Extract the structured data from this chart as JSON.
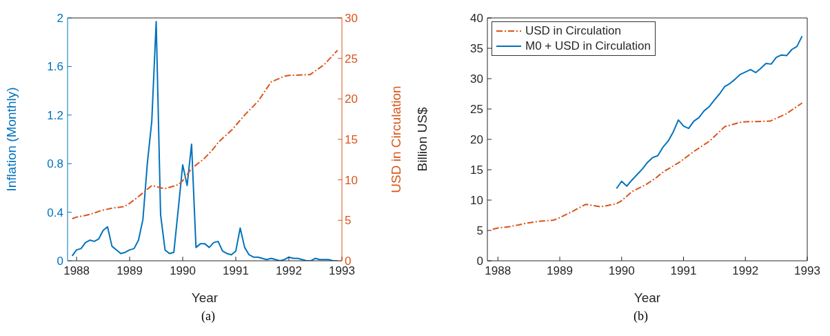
{
  "chart_data": [
    {
      "type": "line",
      "xlabel": "Year",
      "ylabel": "Inflation (Monthly)",
      "y2label": "USD in Circulation",
      "annotations": [
        "(a)"
      ],
      "xlim": [
        1987.83,
        1993
      ],
      "xticks": [
        1988,
        1989,
        1990,
        1991,
        1992,
        1993
      ],
      "ylim": [
        0,
        2
      ],
      "yticks": [
        0,
        0.4,
        0.8,
        1.2,
        1.6,
        2
      ],
      "y2lim": [
        0,
        30
      ],
      "y2ticks": [
        0,
        5,
        10,
        15,
        20,
        25,
        30
      ],
      "legend": false,
      "series": [
        {
          "color": "#0072bd",
          "line_style": "solid",
          "x": [
            1987.917,
            1988.0,
            1988.083,
            1988.167,
            1988.25,
            1988.333,
            1988.417,
            1988.5,
            1988.583,
            1988.667,
            1988.75,
            1988.833,
            1988.917,
            1989.0,
            1989.083,
            1989.167,
            1989.25,
            1989.333,
            1989.417,
            1989.5,
            1989.583,
            1989.667,
            1989.75,
            1989.833,
            1989.917,
            1990.0,
            1990.083,
            1990.167,
            1990.25,
            1990.333,
            1990.417,
            1990.5,
            1990.583,
            1990.667,
            1990.75,
            1990.833,
            1990.917,
            1991.0,
            1991.083,
            1991.167,
            1991.25,
            1991.333,
            1991.417,
            1991.5,
            1991.583,
            1991.667,
            1991.75,
            1991.833,
            1991.917,
            1992.0,
            1992.083,
            1992.167,
            1992.25,
            1992.333,
            1992.417,
            1992.5,
            1992.583,
            1992.667,
            1992.75,
            1992.833,
            1992.917
          ],
          "values": [
            0.04,
            0.09,
            0.1,
            0.15,
            0.17,
            0.16,
            0.18,
            0.25,
            0.28,
            0.12,
            0.09,
            0.06,
            0.07,
            0.09,
            0.1,
            0.17,
            0.34,
            0.8,
            1.15,
            1.97,
            0.38,
            0.09,
            0.06,
            0.07,
            0.43,
            0.79,
            0.62,
            0.96,
            0.11,
            0.14,
            0.14,
            0.11,
            0.15,
            0.16,
            0.08,
            0.06,
            0.05,
            0.08,
            0.27,
            0.11,
            0.05,
            0.03,
            0.03,
            0.02,
            0.01,
            0.02,
            0.01,
            0,
            0.01,
            0.03,
            0.02,
            0.02,
            0.01,
            0,
            0,
            0.02,
            0.01,
            0.01,
            0.01,
            0,
            0
          ]
        },
        {
          "color": "#d95319",
          "axis": "y2",
          "line_style": "dashdot",
          "x": [
            1987.917,
            1988.0,
            1988.167,
            1988.333,
            1988.46,
            1988.667,
            1988.9,
            1989.0,
            1989.16,
            1989.42,
            1989.66,
            1989.917,
            1990.0,
            1990.167,
            1990.4,
            1990.56,
            1990.68,
            1990.93,
            1991.18,
            1991.42,
            1991.667,
            1991.917,
            1992.0,
            1992.4,
            1992.66,
            1992.917
          ],
          "values": [
            5.2,
            5.4,
            5.6,
            5.9,
            6.2,
            6.5,
            6.7,
            7.1,
            7.9,
            9.3,
            8.9,
            9.4,
            9.9,
            11.4,
            12.6,
            13.7,
            14.7,
            16.2,
            18.1,
            19.7,
            22.1,
            22.8,
            22.9,
            23.0,
            24.2,
            26.0
          ]
        }
      ]
    },
    {
      "type": "line",
      "xlabel": "Year",
      "ylabel": "Billion US$",
      "annotations": [
        "(b)"
      ],
      "xlim": [
        1987.83,
        1993
      ],
      "xticks": [
        1988,
        1989,
        1990,
        1991,
        1992,
        1993
      ],
      "ylim": [
        0,
        40
      ],
      "yticks": [
        0,
        5,
        10,
        15,
        20,
        25,
        30,
        35,
        40
      ],
      "legend": "top left",
      "series": [
        {
          "name": "USD in Circulation",
          "color": "#d95319",
          "line_style": "dashdot",
          "x": [
            1987.917,
            1988.0,
            1988.167,
            1988.333,
            1988.46,
            1988.667,
            1988.9,
            1989.0,
            1989.16,
            1989.42,
            1989.66,
            1989.917,
            1990.0,
            1990.167,
            1990.4,
            1990.56,
            1990.68,
            1990.93,
            1991.18,
            1991.42,
            1991.667,
            1991.917,
            1992.0,
            1992.4,
            1992.66,
            1992.917
          ],
          "values": [
            5.2,
            5.4,
            5.6,
            5.9,
            6.2,
            6.5,
            6.7,
            7.1,
            7.9,
            9.3,
            8.9,
            9.4,
            9.9,
            11.4,
            12.6,
            13.7,
            14.7,
            16.2,
            18.1,
            19.7,
            22.1,
            22.8,
            22.9,
            23.0,
            24.2,
            26.0
          ]
        },
        {
          "name": "M0 + USD in Circulation",
          "color": "#0072bd",
          "line_style": "solid",
          "x": [
            1989.917,
            1990.0,
            1990.083,
            1990.167,
            1990.25,
            1990.333,
            1990.417,
            1990.5,
            1990.583,
            1990.667,
            1990.75,
            1990.833,
            1990.917,
            1991.0,
            1991.083,
            1991.167,
            1991.25,
            1991.333,
            1991.417,
            1991.5,
            1991.583,
            1991.667,
            1991.75,
            1991.833,
            1991.917,
            1992.0,
            1992.083,
            1992.167,
            1992.25,
            1992.333,
            1992.417,
            1992.5,
            1992.583,
            1992.667,
            1992.75,
            1992.833,
            1992.917
          ],
          "values": [
            11.9,
            13.1,
            12.3,
            13.3,
            14.2,
            15.1,
            16.2,
            17.0,
            17.3,
            18.7,
            19.7,
            21.2,
            23.2,
            22.2,
            21.8,
            23.0,
            23.6,
            24.7,
            25.4,
            26.5,
            27.5,
            28.7,
            29.2,
            29.9,
            30.7,
            31.1,
            31.5,
            31.0,
            31.7,
            32.5,
            32.4,
            33.5,
            33.9,
            33.8,
            34.8,
            35.3,
            37.0
          ]
        }
      ]
    }
  ]
}
